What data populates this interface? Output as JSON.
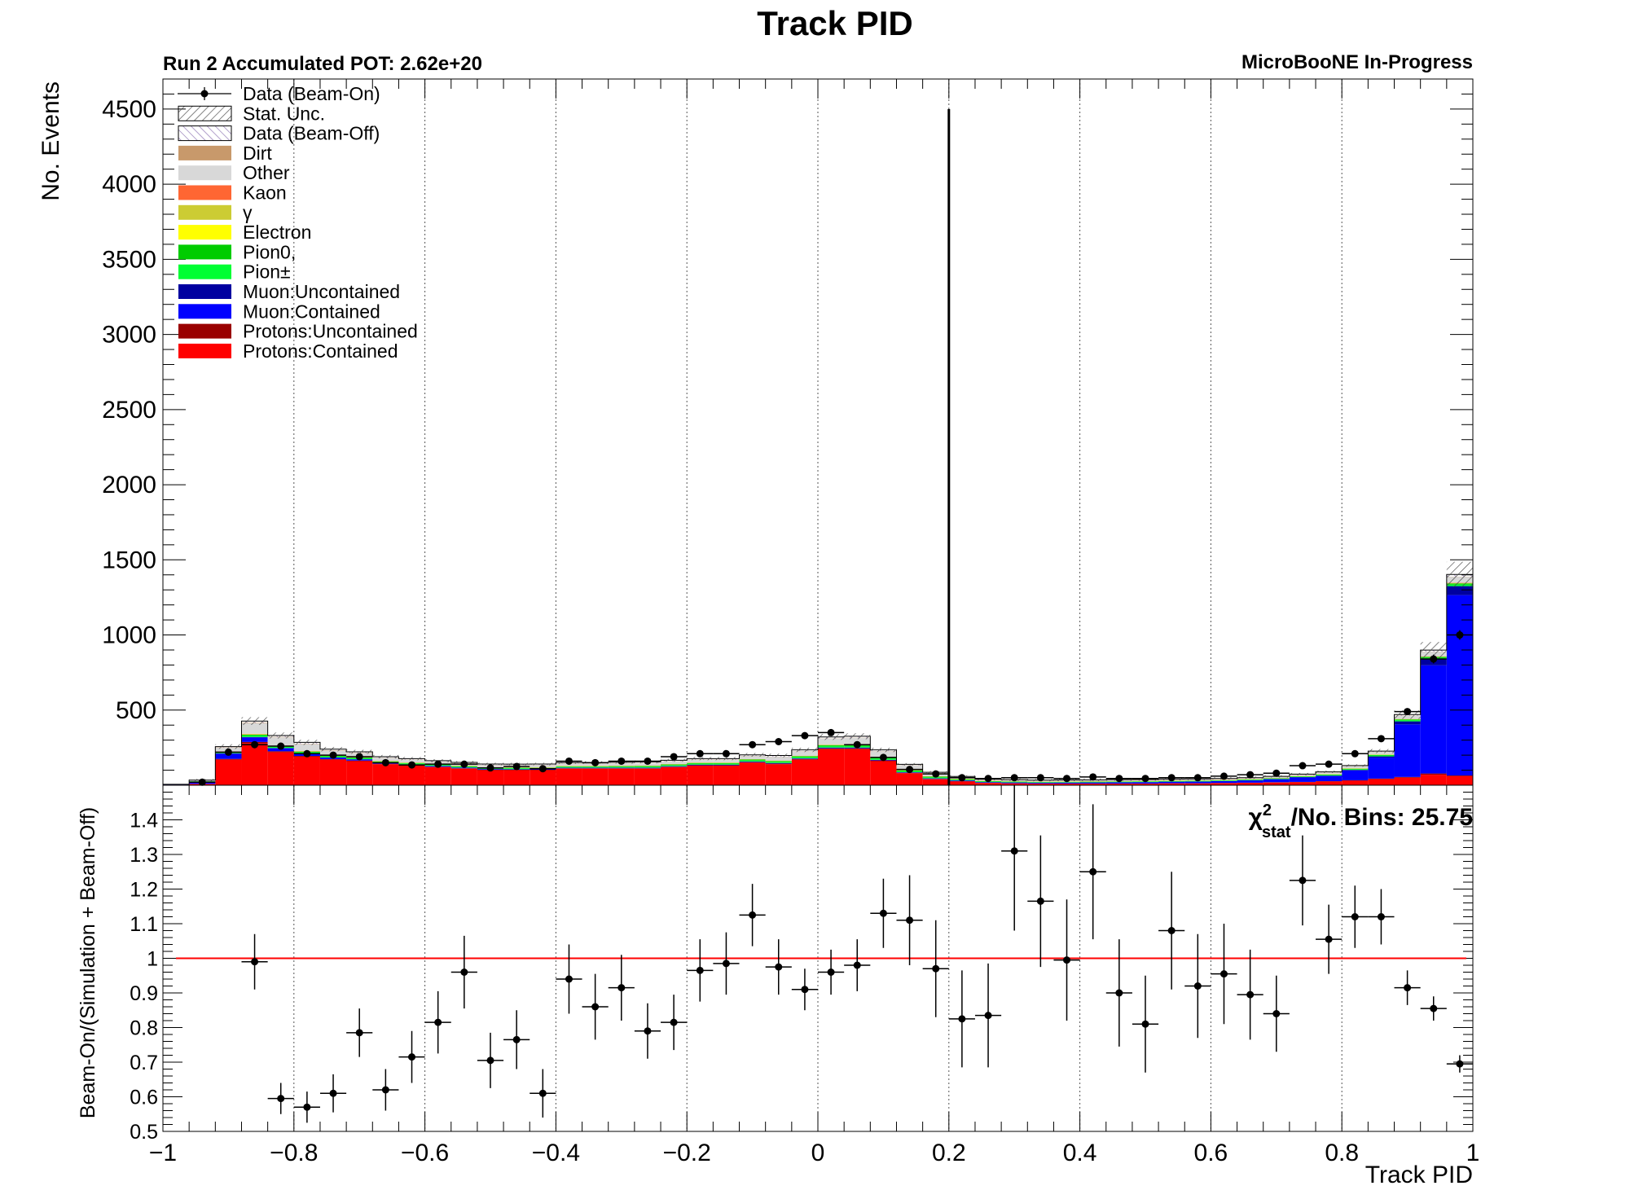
{
  "chart_data": [
    {
      "type": "bar",
      "stacked": true,
      "title": "Track PID",
      "run_label": "Run 2 Accumulated POT: 2.62e+20",
      "experiment_label": "MicroBooNE In-Progress",
      "xlabel": "Track PID",
      "ylabel": "No. Events",
      "xlim": [
        -1,
        1
      ],
      "ylim": [
        0,
        4700
      ],
      "yticks": [
        500,
        1000,
        1500,
        2000,
        2500,
        3000,
        3500,
        4000,
        4500
      ],
      "bin_edges": [
        -1.0,
        -0.96,
        -0.92,
        -0.88,
        -0.84,
        -0.8,
        -0.76,
        -0.72,
        -0.68,
        -0.64,
        -0.6,
        -0.56,
        -0.52,
        -0.48,
        -0.44,
        -0.4,
        -0.36,
        -0.32,
        -0.28,
        -0.24,
        -0.2,
        -0.16,
        -0.12,
        -0.08,
        -0.04,
        0.0,
        0.04,
        0.08,
        0.12,
        0.16,
        0.2,
        0.24,
        0.28,
        0.32,
        0.36,
        0.4,
        0.44,
        0.48,
        0.52,
        0.56,
        0.6,
        0.64,
        0.68,
        0.72,
        0.76,
        0.8,
        0.84,
        0.88,
        0.92,
        0.96,
        1.0
      ],
      "cut_line_x": 0.2,
      "cut_line_top": 4500,
      "legend": [
        {
          "label": "Data (Beam-On)",
          "style": "marker"
        },
        {
          "label": "Stat. Unc.",
          "style": "hatch",
          "color": "#555555"
        },
        {
          "label": "Data (Beam-Off)",
          "style": "hatch",
          "color": "#8a6fb0"
        },
        {
          "label": "Dirt",
          "style": "fill",
          "color": "#c8996b"
        },
        {
          "label": "Other",
          "style": "fill",
          "color": "#d8d8d8"
        },
        {
          "label": "Kaon",
          "style": "fill",
          "color": "#ff6633"
        },
        {
          "label": "γ",
          "style": "fill",
          "color": "#cccc33"
        },
        {
          "label": "Electron",
          "style": "fill",
          "color": "#ffff00"
        },
        {
          "label": "Pion0,",
          "style": "fill",
          "color": "#00cc00"
        },
        {
          "label": "Pion±",
          "style": "fill",
          "color": "#00ff33"
        },
        {
          "label": "Muon:Uncontained",
          "style": "fill",
          "color": "#0000a0"
        },
        {
          "label": "Muon:Contained",
          "style": "fill",
          "color": "#0000ff"
        },
        {
          "label": "Protons:Uncontained",
          "style": "fill",
          "color": "#990000"
        },
        {
          "label": "Protons:Contained",
          "style": "fill",
          "color": "#ff0000"
        }
      ],
      "series": [
        {
          "name": "Protons:Contained",
          "color": "#ff0000",
          "values": [
            3,
            8,
            170,
            280,
            220,
            190,
            170,
            160,
            140,
            130,
            120,
            110,
            100,
            100,
            100,
            110,
            110,
            110,
            110,
            120,
            130,
            130,
            150,
            140,
            170,
            240,
            240,
            160,
            80,
            40,
            25,
            15,
            12,
            10,
            10,
            10,
            10,
            10,
            12,
            12,
            14,
            16,
            18,
            20,
            25,
            30,
            40,
            50,
            70,
            60
          ]
        },
        {
          "name": "Protons:Uncontained",
          "color": "#990000",
          "values": [
            0,
            1,
            5,
            8,
            6,
            5,
            4,
            4,
            3,
            3,
            3,
            3,
            3,
            3,
            3,
            3,
            3,
            3,
            3,
            3,
            3,
            3,
            4,
            4,
            5,
            6,
            6,
            5,
            3,
            2,
            2,
            1,
            1,
            1,
            1,
            1,
            1,
            1,
            1,
            1,
            1,
            1,
            2,
            2,
            2,
            3,
            4,
            5,
            8,
            5
          ]
        },
        {
          "name": "Muon:Contained",
          "color": "#0000ff",
          "values": [
            2,
            15,
            35,
            30,
            20,
            15,
            10,
            8,
            6,
            5,
            5,
            4,
            4,
            3,
            3,
            3,
            3,
            3,
            3,
            3,
            3,
            3,
            3,
            3,
            3,
            4,
            4,
            3,
            3,
            3,
            4,
            4,
            5,
            5,
            6,
            7,
            8,
            9,
            10,
            11,
            12,
            15,
            20,
            30,
            35,
            65,
            140,
            350,
            720,
            1200
          ]
        },
        {
          "name": "Muon:Uncontained",
          "color": "#0000a0",
          "values": [
            0,
            1,
            3,
            3,
            2,
            2,
            1,
            1,
            1,
            1,
            1,
            1,
            1,
            1,
            1,
            1,
            1,
            1,
            1,
            1,
            1,
            1,
            1,
            1,
            1,
            1,
            1,
            1,
            1,
            1,
            1,
            1,
            1,
            1,
            1,
            1,
            1,
            1,
            1,
            1,
            1,
            1,
            1,
            2,
            2,
            4,
            8,
            20,
            40,
            60
          ]
        },
        {
          "name": "Pion±",
          "color": "#00ff33",
          "values": [
            0,
            1,
            5,
            10,
            8,
            8,
            7,
            7,
            6,
            6,
            6,
            6,
            6,
            6,
            6,
            6,
            6,
            7,
            7,
            7,
            7,
            7,
            8,
            8,
            9,
            10,
            10,
            9,
            8,
            7,
            5,
            4,
            4,
            3,
            3,
            3,
            3,
            3,
            3,
            3,
            3,
            3,
            3,
            3,
            4,
            5,
            6,
            8,
            10,
            10
          ]
        },
        {
          "name": "Pion0,",
          "color": "#00cc00",
          "values": [
            0,
            1,
            3,
            5,
            4,
            4,
            4,
            4,
            3,
            3,
            3,
            3,
            3,
            3,
            3,
            3,
            3,
            3,
            4,
            4,
            4,
            4,
            5,
            5,
            5,
            6,
            6,
            5,
            4,
            4,
            3,
            2,
            2,
            2,
            2,
            2,
            2,
            2,
            2,
            2,
            2,
            2,
            2,
            2,
            3,
            3,
            4,
            5,
            6,
            8
          ]
        },
        {
          "name": "Electron",
          "color": "#ffff00",
          "values": [
            0,
            0,
            1,
            2,
            1,
            1,
            1,
            1,
            1,
            1,
            1,
            1,
            1,
            1,
            1,
            1,
            1,
            1,
            1,
            1,
            1,
            1,
            1,
            1,
            1,
            1,
            1,
            1,
            1,
            1,
            1,
            1,
            1,
            1,
            1,
            1,
            1,
            1,
            1,
            1,
            1,
            1,
            1,
            1,
            1,
            1,
            1,
            1,
            1,
            1
          ]
        },
        {
          "name": "γ",
          "color": "#cccc33",
          "values": [
            0,
            0,
            1,
            2,
            1,
            1,
            1,
            1,
            1,
            1,
            1,
            1,
            1,
            1,
            1,
            1,
            1,
            1,
            1,
            1,
            1,
            1,
            1,
            1,
            1,
            1,
            1,
            1,
            1,
            1,
            1,
            1,
            1,
            1,
            1,
            1,
            1,
            1,
            1,
            1,
            1,
            1,
            1,
            1,
            1,
            1,
            1,
            1,
            1,
            1
          ]
        },
        {
          "name": "Kaon",
          "color": "#ff6633",
          "values": [
            0,
            0,
            1,
            2,
            2,
            2,
            2,
            1,
            1,
            1,
            1,
            1,
            1,
            1,
            1,
            1,
            1,
            1,
            1,
            1,
            1,
            1,
            1,
            1,
            1,
            1,
            1,
            1,
            1,
            1,
            1,
            1,
            1,
            1,
            1,
            1,
            1,
            1,
            1,
            1,
            1,
            1,
            1,
            1,
            1,
            1,
            1,
            1,
            2,
            2
          ]
        },
        {
          "name": "Other",
          "color": "#d8d8d8",
          "values": [
            1,
            5,
            25,
            70,
            55,
            45,
            30,
            25,
            20,
            18,
            15,
            15,
            14,
            14,
            15,
            15,
            15,
            16,
            16,
            17,
            18,
            18,
            20,
            25,
            30,
            40,
            45,
            40,
            30,
            20,
            10,
            6,
            5,
            5,
            5,
            5,
            5,
            5,
            5,
            5,
            5,
            5,
            6,
            8,
            10,
            12,
            15,
            20,
            30,
            40
          ]
        },
        {
          "name": "Dirt",
          "color": "#c8996b",
          "values": [
            0,
            0,
            2,
            3,
            2,
            2,
            2,
            2,
            1,
            1,
            1,
            1,
            1,
            1,
            1,
            1,
            1,
            1,
            1,
            1,
            1,
            1,
            1,
            1,
            1,
            1,
            1,
            1,
            1,
            1,
            1,
            1,
            1,
            1,
            1,
            1,
            1,
            1,
            1,
            1,
            1,
            1,
            1,
            1,
            1,
            1,
            1,
            1,
            1,
            1
          ]
        },
        {
          "name": "Data (Beam-Off)",
          "color": "#ffffff",
          "values": [
            0,
            2,
            6,
            12,
            10,
            10,
            8,
            8,
            7,
            7,
            6,
            6,
            6,
            6,
            6,
            6,
            6,
            6,
            7,
            7,
            7,
            7,
            7,
            8,
            8,
            10,
            10,
            8,
            6,
            5,
            4,
            3,
            3,
            3,
            3,
            3,
            3,
            3,
            3,
            3,
            3,
            3,
            3,
            3,
            4,
            5,
            6,
            8,
            10,
            15
          ]
        }
      ],
      "stat_unc_frac": 0.06,
      "data_points": {
        "name": "Data (Beam-On)",
        "x": [
          -0.94,
          -0.9,
          -0.86,
          -0.82,
          -0.78,
          -0.74,
          -0.7,
          -0.66,
          -0.62,
          -0.58,
          -0.54,
          -0.5,
          -0.46,
          -0.42,
          -0.38,
          -0.34,
          -0.3,
          -0.26,
          -0.22,
          -0.18,
          -0.14,
          -0.1,
          -0.06,
          -0.02,
          0.02,
          0.06,
          0.1,
          0.14,
          0.18,
          0.22,
          0.26,
          0.3,
          0.34,
          0.38,
          0.42,
          0.46,
          0.5,
          0.54,
          0.58,
          0.62,
          0.66,
          0.7,
          0.74,
          0.78,
          0.82,
          0.86,
          0.9,
          0.94,
          0.98
        ],
        "y": [
          20,
          220,
          270,
          260,
          210,
          200,
          190,
          150,
          135,
          140,
          140,
          115,
          125,
          110,
          160,
          150,
          160,
          160,
          190,
          210,
          210,
          270,
          290,
          330,
          350,
          270,
          185,
          105,
          75,
          50,
          45,
          50,
          50,
          45,
          55,
          45,
          45,
          50,
          50,
          60,
          70,
          80,
          130,
          140,
          210,
          310,
          490,
          840,
          1000
        ]
      }
    },
    {
      "type": "scatter",
      "ylabel": "Beam-On/(Simulation + Beam-Off)",
      "xlabel": "Track PID",
      "xlim": [
        -1,
        1
      ],
      "ylim": [
        0.5,
        1.5
      ],
      "yticks": [
        0.5,
        0.6,
        0.7,
        0.8,
        0.9,
        1,
        1.1,
        1.2,
        1.3,
        1.4
      ],
      "xticks": [
        -1,
        -0.8,
        -0.6,
        -0.4,
        -0.2,
        0,
        0.2,
        0.4,
        0.6,
        0.8,
        1
      ],
      "xtick_labels": [
        "−1",
        "−0.8",
        "−0.6",
        "−0.4",
        "−0.2",
        "0",
        "0.2",
        "0.4",
        "0.6",
        "0.8",
        "1"
      ],
      "reference_line": 1,
      "chi2_text": "χ²stat/No. Bins: 25.75",
      "chi2_main": "χ",
      "chi2_sup": "2",
      "chi2_sub": "stat",
      "chi2_rest": "/No. Bins: 25.75",
      "x": [
        -0.86,
        -0.82,
        -0.78,
        -0.74,
        -0.7,
        -0.66,
        -0.62,
        -0.58,
        -0.54,
        -0.5,
        -0.46,
        -0.42,
        -0.38,
        -0.34,
        -0.3,
        -0.26,
        -0.22,
        -0.18,
        -0.14,
        -0.1,
        -0.06,
        -0.02,
        0.02,
        0.06,
        0.1,
        0.14,
        0.18,
        0.22,
        0.26,
        0.3,
        0.34,
        0.38,
        0.42,
        0.46,
        0.5,
        0.54,
        0.58,
        0.62,
        0.66,
        0.7,
        0.74,
        0.78,
        0.82,
        0.86,
        0.9,
        0.94,
        0.98
      ],
      "y": [
        0.99,
        0.595,
        0.57,
        0.61,
        0.785,
        0.62,
        0.715,
        0.815,
        0.96,
        0.705,
        0.765,
        0.61,
        0.94,
        0.86,
        0.915,
        0.79,
        0.815,
        0.965,
        0.985,
        1.125,
        0.975,
        0.91,
        0.96,
        0.98,
        1.13,
        1.11,
        0.97,
        0.825,
        0.835,
        1.31,
        1.165,
        0.995,
        1.25,
        0.9,
        0.81,
        1.08,
        0.92,
        0.955,
        0.895,
        0.84,
        1.225,
        1.055,
        1.12,
        1.12,
        0.915,
        0.855,
        0.695
      ],
      "yerr": [
        0.08,
        0.045,
        0.045,
        0.055,
        0.07,
        0.06,
        0.075,
        0.09,
        0.105,
        0.08,
        0.085,
        0.07,
        0.1,
        0.095,
        0.095,
        0.08,
        0.08,
        0.09,
        0.09,
        0.09,
        0.08,
        0.06,
        0.065,
        0.075,
        0.1,
        0.13,
        0.14,
        0.14,
        0.15,
        0.23,
        0.19,
        0.175,
        0.195,
        0.155,
        0.14,
        0.17,
        0.15,
        0.145,
        0.13,
        0.11,
        0.13,
        0.1,
        0.09,
        0.08,
        0.05,
        0.035,
        0.025
      ]
    }
  ]
}
